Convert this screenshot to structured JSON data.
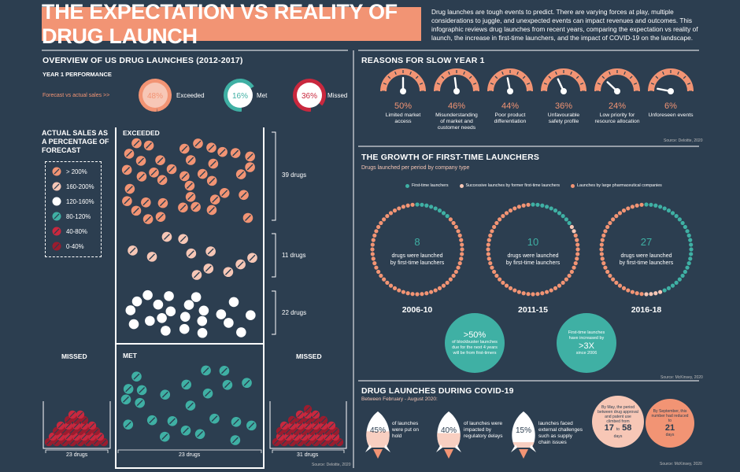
{
  "title": "THE EXPECTATION VS REALITY OF DRUG LAUNCH",
  "intro": "Drug launches are tough events to predict. There are varying forces at play, multiple considerations to juggle, and unexpected events can impact revenues and outcomes. This infographic reviews drug launches from recent years, comparing the expectation vs reality of launch, the increase in first-time launchers, and the impact of COVID-19 on the landscape.",
  "colors": {
    "bg": "#2c3e50",
    "orange": "#f29474",
    "pink": "#f7c7b6",
    "white": "#ffffff",
    "teal": "#3fb0a4",
    "red": "#c9283e",
    "darkred": "#9b1c2e"
  },
  "overview": {
    "title": "OVERVIEW OF US DRUG LAUNCHES (2012-2017)",
    "subtitle": "YEAR 1 PERFORMANCE",
    "forecast_label": "Forecast vs actual sales  >>",
    "stats": [
      {
        "value": "48%",
        "label": "Exceeded",
        "pct": 48,
        "color": "#f29474"
      },
      {
        "value": "16%",
        "label": "Met",
        "pct": 16,
        "color": "#3fb0a4"
      },
      {
        "value": "36%",
        "label": "Missed",
        "pct": 36,
        "color": "#c9283e"
      }
    ],
    "legend_title": "ACTUAL SALES AS A PERCENTAGE OF FORECAST",
    "legend": [
      {
        "label": "> 200%",
        "icon": "pill-orange"
      },
      {
        "label": "160-200%",
        "icon": "pill-pink"
      },
      {
        "label": "120-160%",
        "icon": "pill-white"
      },
      {
        "label": "80-120%",
        "icon": "pill-teal"
      },
      {
        "label": "40-80%",
        "icon": "pill-red"
      },
      {
        "label": "0-40%",
        "icon": "pill-darkred"
      }
    ],
    "exceeded_label": "EXCEEDED",
    "met_label": "MET",
    "missed_label": "MISSED",
    "group_counts": [
      "39 drugs",
      "11 drugs",
      "22 drugs"
    ],
    "bottom_counts": {
      "left": "23 drugs",
      "center": "23 drugs",
      "right": "31 drugs"
    },
    "source": "Source: Deloitte, 2020"
  },
  "reasons": {
    "title": "REASONS FOR SLOW YEAR 1",
    "items": [
      {
        "pct": "50%",
        "value": 50,
        "label": "Limited market access"
      },
      {
        "pct": "46%",
        "value": 46,
        "label": "Misunderstanding of market and customer needs"
      },
      {
        "pct": "44%",
        "value": 44,
        "label": "Poor product differentiation"
      },
      {
        "pct": "36%",
        "value": 36,
        "label": "Unfavourable safety profile"
      },
      {
        "pct": "24%",
        "value": 24,
        "label": "Low priority for resource allocation"
      },
      {
        "pct": "6%",
        "value": 6,
        "label": "Unforeseen events"
      }
    ],
    "source": "Source: Deloitte, 2020"
  },
  "growth": {
    "title": "THE GROWTH OF FIRST-TIME LAUNCHERS",
    "subtitle": "Drugs launched per period by company type",
    "legend": [
      "First-time launchers",
      "Successive launches by former first-time launchers",
      "Launches by large pharmaceutical companies"
    ],
    "periods": [
      {
        "number": "8",
        "text": "drugs were launched by first-time launchers",
        "period": "2006-10",
        "teal": 8,
        "pink": 0
      },
      {
        "number": "10",
        "text": "drugs were launched by first-time launchers",
        "period": "2011-15",
        "teal": 10,
        "pink": 2
      },
      {
        "number": "27",
        "text": "drugs were launched by first-time launchers",
        "period": "2016-18",
        "teal": 27,
        "pink": 4
      }
    ],
    "bubble1": {
      "big": ">50%",
      "text": "of blockbuster launches due for the next 4 years will be from first-timers"
    },
    "bubble2": {
      "top": "First-time launches have increased by",
      "big": ">3X",
      "bottom": "since 2006"
    },
    "source": "Source: McKinsey, 2020"
  },
  "covid": {
    "title": "DRUG LAUNCHES DURING COVID-19",
    "subtitle": "Between February - August 2020:",
    "items": [
      {
        "pct": "45%",
        "value": 45,
        "text": "of launches were put on hold"
      },
      {
        "pct": "40%",
        "value": 40,
        "text": "of launches were impacted by regulatory delays"
      },
      {
        "pct": "15%",
        "value": 15,
        "text": "launches faced external challenges such as supply chain issues"
      }
    ],
    "may": {
      "text": "By May, the period between drug approval and patent use climbed from",
      "from": "17",
      "to_word": "to",
      "to": "58",
      "unit": "days"
    },
    "sep": {
      "text": "By September, this number had reduced to",
      "value": "21",
      "unit": "days"
    },
    "source": "Source: McKinsey, 2020"
  }
}
